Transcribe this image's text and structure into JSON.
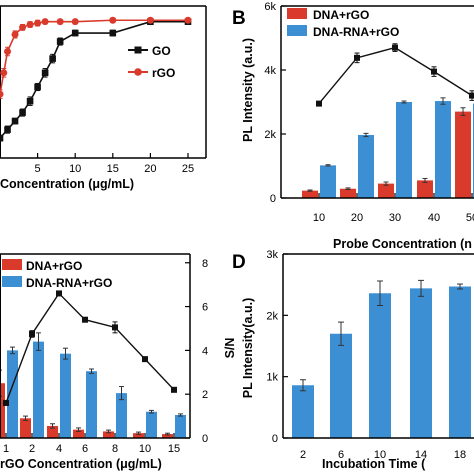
{
  "colors": {
    "red": "#d93a2b",
    "blue": "#3d8fd4",
    "black": "#111111",
    "errbar": "#333333"
  },
  "chart_data": [
    {
      "panel": "A",
      "type": "line",
      "xlabel": "Concentration (μg/mL)",
      "x_ticks": [
        "5",
        "10",
        "15",
        "20",
        "25"
      ],
      "xlim": [
        0,
        25
      ],
      "ylim": [
        0,
        1
      ],
      "series": [
        {
          "name": "GO",
          "color": "#111111",
          "marker": "square",
          "x": [
            0,
            1,
            2,
            3,
            4,
            5,
            6,
            7,
            8,
            10,
            15,
            20,
            25
          ],
          "y": [
            0.14,
            0.2,
            0.26,
            0.32,
            0.4,
            0.5,
            0.6,
            0.7,
            0.82,
            0.88,
            0.88,
            0.96,
            0.96
          ],
          "err": [
            0.02,
            0.025,
            0.02,
            0.025,
            0.03,
            0.025,
            0.03,
            0.03,
            0.025,
            0.02,
            0.02,
            0.02,
            0.015
          ]
        },
        {
          "name": "rGO",
          "color": "#d93a2b",
          "marker": "circle",
          "x": [
            0,
            0.5,
            1,
            2,
            3,
            4,
            5,
            6,
            8,
            10,
            15,
            20,
            25
          ],
          "y": [
            0.45,
            0.6,
            0.75,
            0.87,
            0.92,
            0.94,
            0.95,
            0.96,
            0.96,
            0.96,
            0.97,
            0.97,
            0.97
          ],
          "err": [
            0.03,
            0.03,
            0.03,
            0.025,
            0.02,
            0.02,
            0.02,
            0.015,
            0.015,
            0.015,
            0.015,
            0.015,
            0.01
          ]
        }
      ]
    },
    {
      "panel": "B",
      "type": "bar",
      "xlabel": "Probe Concentration (n",
      "ylabel": "PL Intensity (a.u.)",
      "y_ticks": [
        "0",
        "2k",
        "4k",
        "6k"
      ],
      "ylim": [
        0,
        6000
      ],
      "categories": [
        "10",
        "20",
        "30",
        "40",
        "50"
      ],
      "series": [
        {
          "name": "DNA+rGO",
          "color": "#d93a2b",
          "values": [
            230,
            290,
            450,
            550,
            2700
          ],
          "err": [
            20,
            25,
            50,
            60,
            120
          ]
        },
        {
          "name": "DNA-RNA+rGO",
          "color": "#3d8fd4",
          "values": [
            1020,
            1970,
            3000,
            3030,
            2950
          ],
          "err": [
            20,
            50,
            30,
            100,
            100
          ]
        }
      ],
      "line": {
        "values": [
          2950,
          4380,
          4700,
          3950,
          3200
        ],
        "err": [
          40,
          150,
          120,
          150,
          150
        ]
      }
    },
    {
      "panel": "C",
      "type": "bar",
      "xlabel": "rGO Concentration (μg/mL)",
      "y2label": "S/N",
      "y2_ticks": [
        "0",
        "2",
        "4",
        "6",
        "8"
      ],
      "y2lim": [
        0,
        8.4
      ],
      "categories": [
        "1",
        "2",
        "4",
        "6",
        "8",
        "10",
        "15"
      ],
      "series": [
        {
          "name": "DNA+rGO",
          "color": "#d93a2b",
          "values": [
            2.5,
            0.9,
            0.55,
            0.38,
            0.3,
            0.22,
            0.18
          ],
          "err": [
            0.6,
            0.1,
            0.1,
            0.08,
            0.06,
            0.05,
            0.04
          ]
        },
        {
          "name": "DNA-RNA+rGO",
          "color": "#3d8fd4",
          "values": [
            4.0,
            4.4,
            3.85,
            3.05,
            2.05,
            1.2,
            1.05
          ],
          "err": [
            0.15,
            0.4,
            0.25,
            0.1,
            0.3,
            0.06,
            0.05
          ]
        }
      ],
      "line": {
        "values": [
          1.6,
          4.75,
          6.6,
          5.4,
          5.05,
          3.6,
          2.2
        ],
        "err": [
          0.1,
          0.15,
          0.1,
          0.1,
          0.25,
          0.1,
          0.1
        ]
      }
    },
    {
      "panel": "D",
      "type": "bar",
      "xlabel": "Incubation Time (",
      "ylabel": "PL Intensity(a.u.)",
      "y_ticks": [
        "0",
        "1k",
        "2k",
        "3k"
      ],
      "ylim": [
        0,
        3000
      ],
      "categories": [
        "2",
        "6",
        "10",
        "14",
        "18"
      ],
      "series": [
        {
          "color": "#3d8fd4",
          "values": [
            860,
            1700,
            2360,
            2440,
            2470
          ],
          "err": [
            90,
            190,
            200,
            130,
            40
          ]
        }
      ]
    }
  ]
}
